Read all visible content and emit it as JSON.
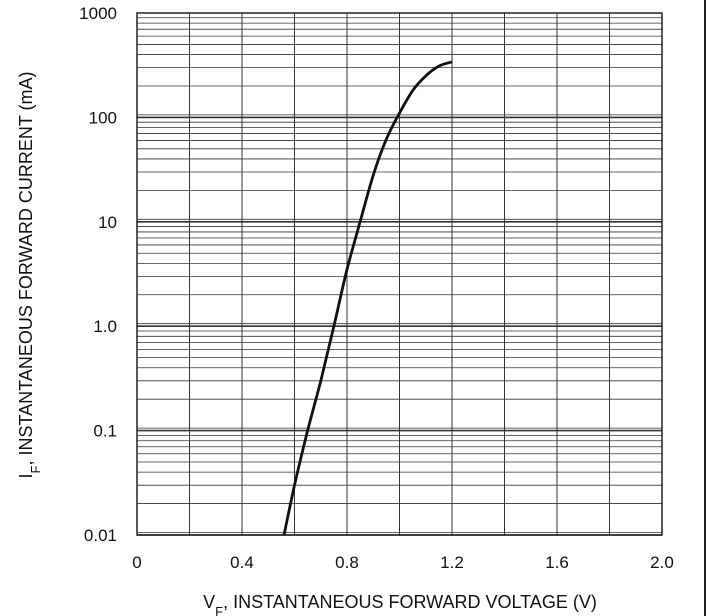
{
  "chart_data": {
    "type": "line",
    "title": "",
    "xlabel": "V",
    "xlabel_sub": "F",
    "xlabel_rest": ", INSTANTANEOUS FORWARD VOLTAGE (V)",
    "ylabel": "I",
    "ylabel_sub": "F",
    "ylabel_rest": ", INSTANTANEOUS FORWARD CURRENT (mA)",
    "xlim": [
      0,
      2.0
    ],
    "ylim": [
      0.01,
      1000
    ],
    "yscale": "log",
    "grid": true,
    "x_ticks": [
      "0",
      "0.4",
      "0.8",
      "1.2",
      "1.6",
      "2.0"
    ],
    "y_ticks": [
      "0.01",
      "0.1",
      "1.0",
      "10",
      "100",
      "1000"
    ],
    "series": [
      {
        "x": [
          0.56,
          0.6,
          0.65,
          0.7,
          0.75,
          0.8,
          0.85,
          0.9,
          0.95,
          1.0,
          1.05,
          1.1,
          1.15,
          1.2
        ],
        "y": [
          0.01,
          0.03,
          0.1,
          0.3,
          1.0,
          3.5,
          10,
          28,
          62,
          110,
          180,
          250,
          310,
          340
        ]
      }
    ],
    "line_color": "#111111"
  }
}
